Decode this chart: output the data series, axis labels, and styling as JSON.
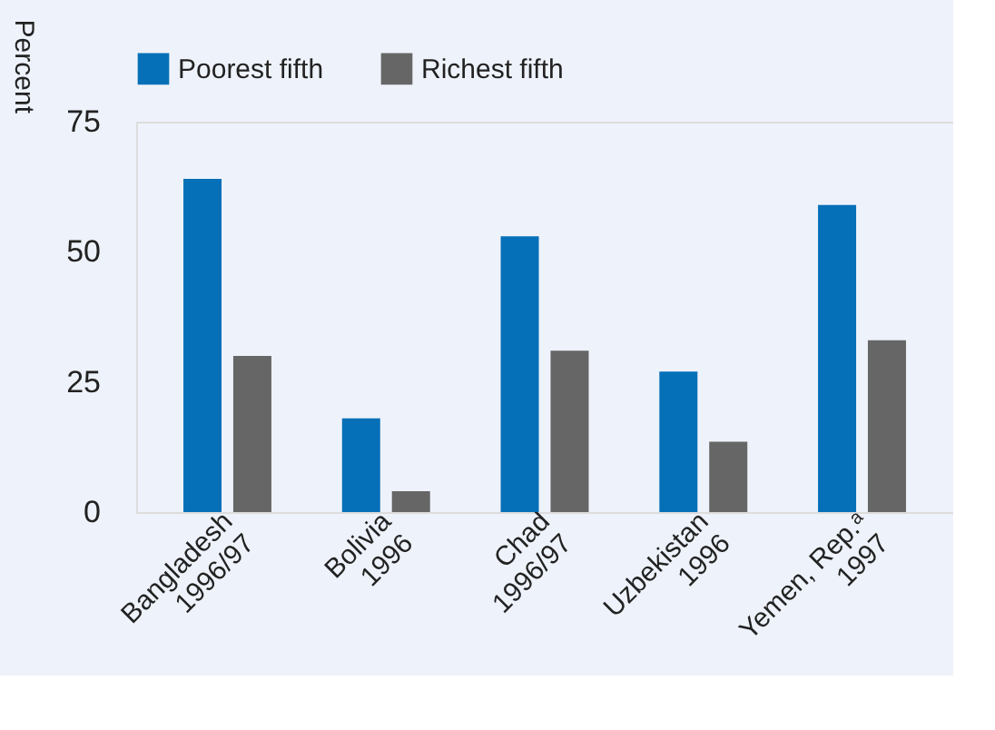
{
  "chart_data": {
    "type": "bar",
    "ylabel": "Percent",
    "categories": [
      "Bangladesh\n1996/97",
      "Bolivia\n1996",
      "Chad\n1996/97",
      "Uzbekistan\n1996",
      "Yemen, Rep.ᵃ\n1997"
    ],
    "series": [
      {
        "name": "Poorest fifth",
        "color": "#0570b8",
        "values": [
          64,
          18,
          53,
          27,
          59
        ]
      },
      {
        "name": "Richest fifth",
        "color": "#666666",
        "values": [
          30,
          4,
          31,
          13.5,
          33
        ]
      }
    ],
    "ylim": [
      0,
      75
    ],
    "yticks": [
      0,
      25,
      50,
      75
    ],
    "grid": false,
    "legend": "top left"
  }
}
